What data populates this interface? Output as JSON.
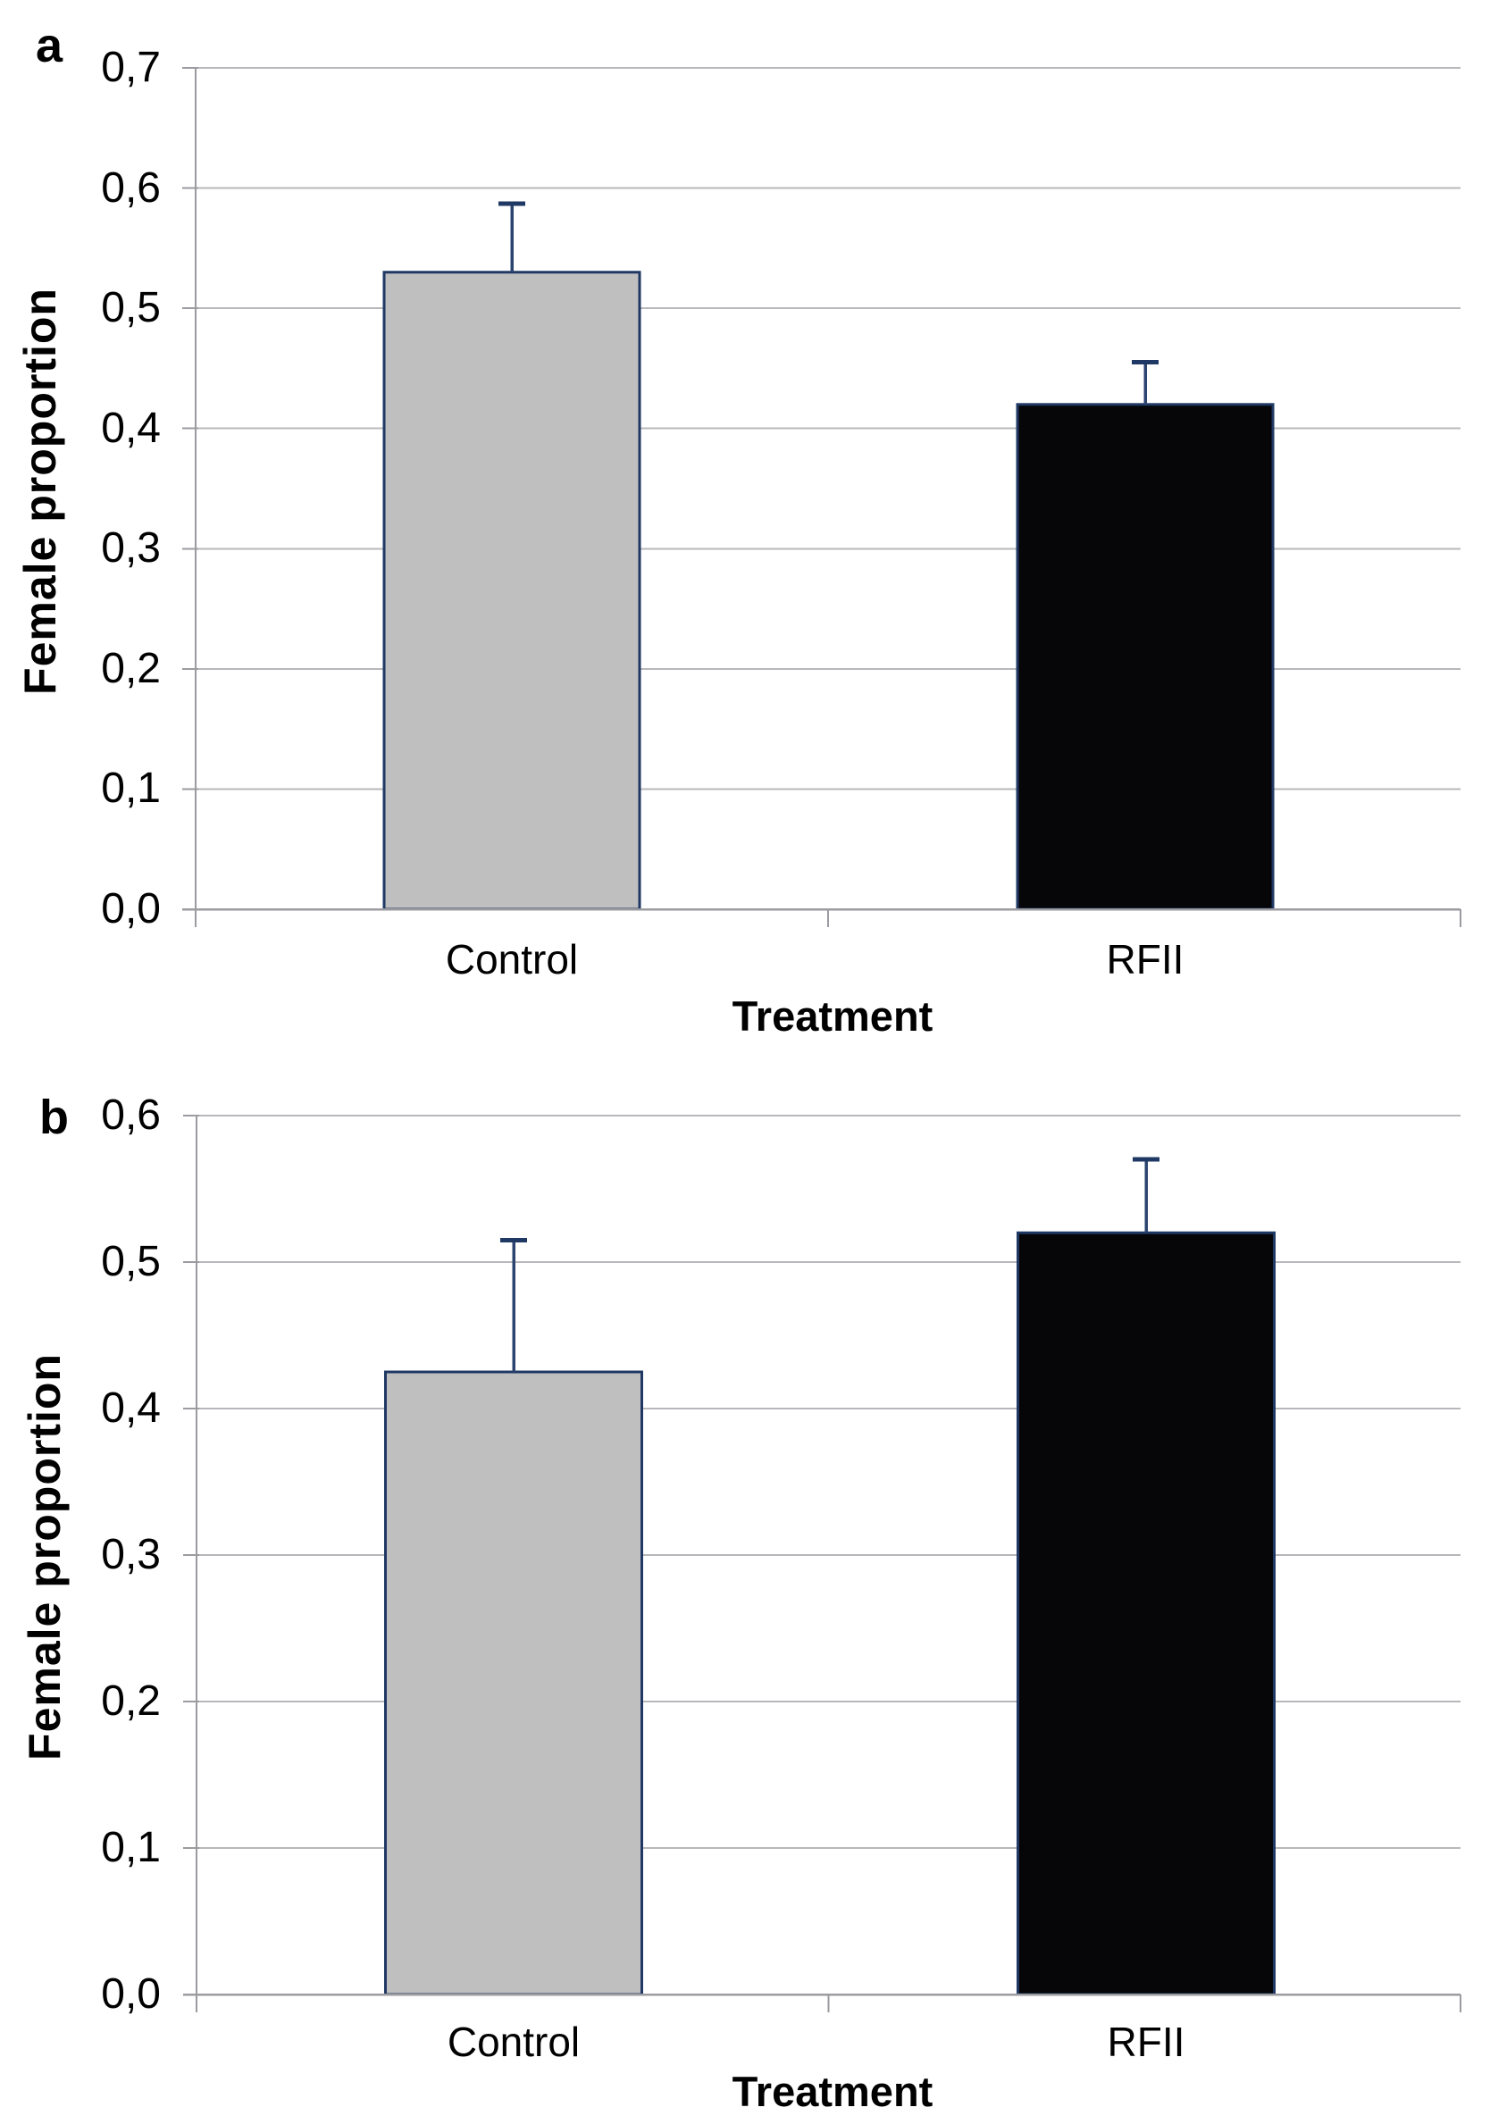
{
  "figure": {
    "background": "#FFFFFF",
    "panel_count": 2
  },
  "chart_data": [
    {
      "type": "bar",
      "panel_label": "a",
      "title": "",
      "xlabel": "Treatment",
      "ylabel": "Female proportion",
      "categories": [
        "Control",
        "RFII"
      ],
      "values": [
        0.53,
        0.42
      ],
      "errors_upper": [
        0.057,
        0.035
      ],
      "ylim": [
        0,
        0.7
      ],
      "ytick_step": 0.1,
      "ytick_labels": [
        "0,0",
        "0,1",
        "0,2",
        "0,3",
        "0,4",
        "0,5",
        "0,6",
        "0,7"
      ],
      "decimal_separator": ",",
      "grid": true,
      "legend": "none",
      "bar_colors": [
        "#BFBFBF",
        "#060609"
      ],
      "bar_border_color": "#1F3864",
      "error_bar_color": "#2C4470",
      "gridline_color": "#B8B8BC",
      "axis_color": "#9B9BA0"
    },
    {
      "type": "bar",
      "panel_label": "b",
      "title": "",
      "xlabel": "Treatment",
      "ylabel": "Female proportion",
      "categories": [
        "Control",
        "RFII"
      ],
      "values": [
        0.425,
        0.52
      ],
      "errors_upper": [
        0.09,
        0.05
      ],
      "ylim": [
        0,
        0.6
      ],
      "ytick_step": 0.1,
      "ytick_labels": [
        "0,0",
        "0,1",
        "0,2",
        "0,3",
        "0,4",
        "0,5",
        "0,6"
      ],
      "decimal_separator": ",",
      "grid": true,
      "legend": "none",
      "bar_colors": [
        "#BFBFBF",
        "#060609"
      ],
      "bar_border_color": "#1F3864",
      "error_bar_color": "#2C4470",
      "gridline_color": "#B8B8BC",
      "axis_color": "#9B9BA0"
    }
  ]
}
